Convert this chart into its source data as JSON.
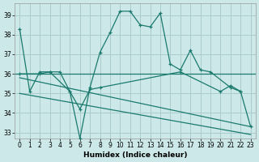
{
  "xlabel": "Humidex (Indice chaleur)",
  "background_color": "#cce8e8",
  "grid_color": "#aacccc",
  "line_color": "#1a7a6e",
  "ylim": [
    32.7,
    39.6
  ],
  "xlim": [
    -0.5,
    23.5
  ],
  "yticks": [
    33,
    34,
    35,
    36,
    37,
    38,
    39
  ],
  "xticks": [
    0,
    1,
    2,
    3,
    4,
    5,
    6,
    7,
    8,
    9,
    10,
    11,
    12,
    13,
    14,
    15,
    16,
    17,
    18,
    19,
    20,
    21,
    22,
    23
  ],
  "line1_x": [
    0,
    1,
    2,
    3,
    4,
    5,
    6,
    7,
    8,
    9,
    10,
    11,
    12,
    13,
    14,
    15,
    16,
    17,
    18,
    19,
    21,
    22,
    23
  ],
  "line1_y": [
    38.3,
    35.1,
    36.1,
    36.1,
    36.1,
    35.1,
    32.7,
    35.3,
    37.1,
    38.1,
    39.2,
    39.2,
    38.5,
    38.4,
    39.1,
    36.5,
    36.2,
    37.2,
    36.2,
    36.1,
    35.3,
    35.1,
    33.3
  ],
  "line2_x": [
    0,
    2,
    3,
    5,
    6,
    7,
    8,
    16,
    20,
    21,
    22
  ],
  "line2_y": [
    36.0,
    36.0,
    36.1,
    35.1,
    34.2,
    35.2,
    35.3,
    36.1,
    35.1,
    35.4,
    35.1
  ],
  "hline_y": 36.0,
  "line3_x": [
    0,
    23
  ],
  "line3_y": [
    35.8,
    33.3
  ],
  "line4_x": [
    0,
    23
  ],
  "line4_y": [
    35.0,
    32.9
  ]
}
